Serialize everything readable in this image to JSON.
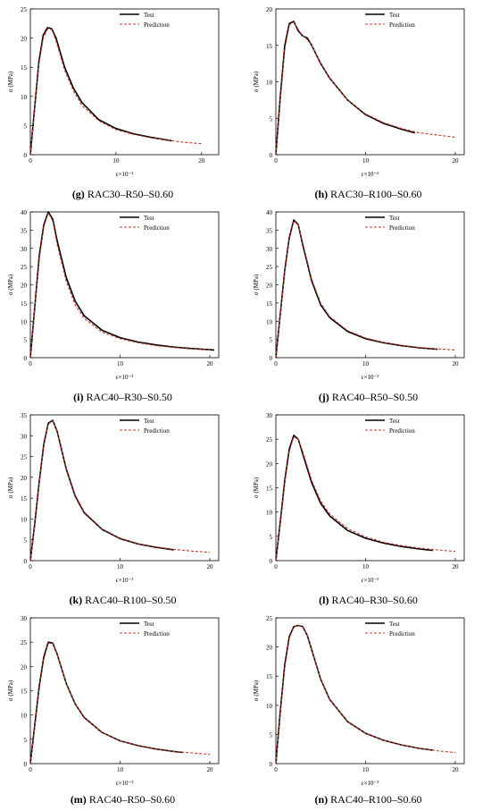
{
  "legend": {
    "test": "Test",
    "prediction": "Prediction"
  },
  "axes": {
    "xlabel": "ε×10⁻³",
    "ylabel": "σ (MPa)"
  },
  "colors": {
    "test": "#000000",
    "prediction": "#c0392b"
  },
  "chart_data": [
    {
      "type": "line",
      "letter": "(g)",
      "specimen": "RAC30–R50–S0.60",
      "xlabel": "ε×10⁻³",
      "ylabel": "σ (MPa)",
      "xlim": [
        0,
        22
      ],
      "ylim": [
        0,
        25
      ],
      "xticks": [
        0,
        10,
        20
      ],
      "yticks": [
        0,
        5,
        10,
        15,
        20,
        25
      ],
      "legend_position": "top-right",
      "series": [
        {
          "name": "Test",
          "style": "solid",
          "x": [
            0,
            0.5,
            1,
            1.5,
            2,
            2.5,
            3,
            4,
            5,
            6,
            8,
            10,
            12,
            14,
            16.5
          ],
          "y": [
            0,
            8,
            16,
            20.5,
            21.8,
            21.6,
            20,
            15,
            11.5,
            9,
            6,
            4.5,
            3.6,
            3,
            2.4
          ]
        },
        {
          "name": "Prediction",
          "style": "dashed",
          "x": [
            0,
            0.5,
            1,
            1.5,
            2,
            2.5,
            3,
            4,
            5,
            6,
            8,
            10,
            12,
            14,
            16,
            18,
            20
          ],
          "y": [
            0,
            7.5,
            15.5,
            20,
            21.5,
            21.5,
            19.5,
            14.5,
            11,
            8.5,
            5.8,
            4.3,
            3.5,
            2.9,
            2.5,
            2.1,
            1.9
          ]
        }
      ]
    },
    {
      "type": "line",
      "letter": "(h)",
      "specimen": "RAC30–R100–S0.60",
      "xlabel": "ε×10⁻³",
      "ylabel": "σ (MPa)",
      "xlim": [
        0,
        21
      ],
      "ylim": [
        0,
        20
      ],
      "xticks": [
        0,
        10,
        20
      ],
      "yticks": [
        0,
        5,
        10,
        15,
        20
      ],
      "legend_position": "top-right",
      "series": [
        {
          "name": "Test",
          "style": "solid",
          "x": [
            0,
            0.5,
            1,
            1.5,
            2,
            2.5,
            3,
            3.5,
            4,
            5,
            6,
            8,
            10,
            12,
            14,
            15.5
          ],
          "y": [
            0,
            8,
            15,
            18,
            18.3,
            17,
            16.3,
            16,
            15,
            12.5,
            10.5,
            7.5,
            5.5,
            4.3,
            3.5,
            3
          ]
        },
        {
          "name": "Prediction",
          "style": "dashed",
          "x": [
            0,
            0.5,
            1,
            1.5,
            2,
            2.5,
            3,
            3.5,
            4,
            5,
            6,
            8,
            10,
            12,
            14,
            16,
            18,
            20
          ],
          "y": [
            0,
            7.5,
            14.5,
            17.8,
            18.2,
            17.2,
            16.3,
            15.8,
            15,
            12.5,
            10.5,
            7.5,
            5.6,
            4.4,
            3.6,
            3,
            2.7,
            2.4
          ]
        }
      ]
    },
    {
      "type": "line",
      "letter": "(i)",
      "specimen": "RAC40–R30–S0.50",
      "xlabel": "ε×10⁻³",
      "ylabel": "σ (MPa)",
      "xlim": [
        0,
        21
      ],
      "ylim": [
        0,
        40
      ],
      "xticks": [
        0,
        10,
        20
      ],
      "yticks": [
        0,
        5,
        10,
        15,
        20,
        25,
        30,
        35,
        40
      ],
      "legend_position": "top-right",
      "series": [
        {
          "name": "Test",
          "style": "solid",
          "x": [
            0,
            0.5,
            1,
            1.5,
            2,
            2.5,
            3,
            4,
            5,
            6,
            8,
            10,
            12,
            14,
            16,
            18,
            20.5
          ],
          "y": [
            0,
            14,
            28,
            36.5,
            40,
            38,
            32,
            22,
            15.5,
            11.5,
            7.5,
            5.5,
            4.3,
            3.5,
            2.9,
            2.5,
            2.1
          ]
        },
        {
          "name": "Prediction",
          "style": "dashed",
          "x": [
            0,
            0.5,
            1,
            1.5,
            2,
            2.5,
            3,
            4,
            5,
            6,
            8,
            10,
            12,
            14,
            16,
            18,
            20
          ],
          "y": [
            0,
            13.5,
            27,
            36,
            39.7,
            37.5,
            31,
            21,
            14.5,
            10.8,
            7,
            5.2,
            4.1,
            3.3,
            2.8,
            2.4,
            2.1
          ]
        }
      ]
    },
    {
      "type": "line",
      "letter": "(j)",
      "specimen": "RAC40–R50–S0.50",
      "xlabel": "ε×10⁻³",
      "ylabel": "σ (MPa)",
      "xlim": [
        0,
        21
      ],
      "ylim": [
        0,
        40
      ],
      "xticks": [
        0,
        10,
        20
      ],
      "yticks": [
        0,
        5,
        10,
        15,
        20,
        25,
        30,
        35,
        40
      ],
      "legend_position": "top-right",
      "series": [
        {
          "name": "Test",
          "style": "solid",
          "x": [
            0,
            0.5,
            1,
            1.5,
            2,
            2.5,
            3,
            4,
            5,
            6,
            8,
            10,
            12,
            14,
            16,
            18
          ],
          "y": [
            0,
            12,
            24,
            33,
            37.8,
            36.5,
            31,
            21,
            14.5,
            11,
            7.2,
            5.2,
            4.1,
            3.3,
            2.7,
            2.3
          ]
        },
        {
          "name": "Prediction",
          "style": "dashed",
          "x": [
            0,
            0.5,
            1,
            1.5,
            2,
            2.5,
            3,
            4,
            5,
            6,
            8,
            10,
            12,
            14,
            16,
            18,
            20
          ],
          "y": [
            0,
            11.5,
            23.5,
            32.5,
            37.5,
            36.5,
            31.5,
            21.5,
            15,
            11.3,
            7.4,
            5.4,
            4.2,
            3.4,
            2.8,
            2.4,
            2.1
          ]
        }
      ]
    },
    {
      "type": "line",
      "letter": "(k)",
      "specimen": "RAC40–R100–S0.50",
      "xlabel": "ε×10⁻³",
      "ylabel": "σ (MPa)",
      "xlim": [
        0,
        21
      ],
      "ylim": [
        0,
        35
      ],
      "xticks": [
        0,
        10,
        20
      ],
      "yticks": [
        0,
        5,
        10,
        15,
        20,
        25,
        30,
        35
      ],
      "legend_position": "top-right",
      "series": [
        {
          "name": "Test",
          "style": "solid",
          "x": [
            0,
            0.5,
            1,
            1.5,
            2,
            2.5,
            3,
            4,
            5,
            6,
            8,
            10,
            12,
            14,
            16
          ],
          "y": [
            0,
            9,
            19,
            28,
            33,
            33.7,
            31,
            22,
            15.5,
            11.5,
            7.5,
            5.3,
            4,
            3.2,
            2.6
          ]
        },
        {
          "name": "Prediction",
          "style": "dashed",
          "x": [
            0,
            0.5,
            1,
            1.5,
            2,
            2.5,
            3,
            4,
            5,
            6,
            8,
            10,
            12,
            14,
            16,
            18,
            20
          ],
          "y": [
            0,
            8.5,
            18.5,
            27.5,
            32.8,
            33.6,
            31.2,
            22.3,
            15.8,
            11.7,
            7.6,
            5.4,
            4.1,
            3.3,
            2.7,
            2.3,
            2
          ]
        }
      ]
    },
    {
      "type": "line",
      "letter": "(l)",
      "specimen": "RAC40–R30–S0.60",
      "xlabel": "ε×10⁻³",
      "ylabel": "σ (MPa)",
      "xlim": [
        0,
        21
      ],
      "ylim": [
        0,
        30
      ],
      "xticks": [
        0,
        10,
        20
      ],
      "yticks": [
        0,
        5,
        10,
        15,
        20,
        25,
        30
      ],
      "legend_position": "top-right",
      "series": [
        {
          "name": "Test",
          "style": "solid",
          "x": [
            0,
            0.5,
            1,
            1.5,
            2,
            2.5,
            3,
            4,
            5,
            6,
            8,
            10,
            12,
            14,
            16,
            17.5
          ],
          "y": [
            0,
            8,
            16.5,
            23,
            25.8,
            25,
            22,
            16,
            11.8,
            9.2,
            6.2,
            4.6,
            3.6,
            2.9,
            2.4,
            2.1
          ]
        },
        {
          "name": "Prediction",
          "style": "dashed",
          "x": [
            0,
            0.5,
            1,
            1.5,
            2,
            2.5,
            3,
            4,
            5,
            6,
            8,
            10,
            12,
            14,
            16,
            18,
            20
          ],
          "y": [
            0,
            7.5,
            16,
            22.5,
            25.5,
            25,
            22.5,
            16.5,
            12.3,
            9.6,
            6.6,
            4.9,
            3.8,
            3.1,
            2.6,
            2.2,
            1.9
          ]
        }
      ]
    },
    {
      "type": "line",
      "letter": "(m)",
      "specimen": "RAC40–R50–S0.60",
      "xlabel": "ε×10⁻³",
      "ylabel": "σ (MPa)",
      "xlim": [
        0,
        21
      ],
      "ylim": [
        0,
        30
      ],
      "xticks": [
        0,
        10,
        20
      ],
      "yticks": [
        0,
        5,
        10,
        15,
        20,
        25,
        30
      ],
      "legend_position": "top-right",
      "series": [
        {
          "name": "Test",
          "style": "solid",
          "x": [
            0,
            0.5,
            1,
            1.5,
            2,
            2.5,
            3,
            4,
            5,
            6,
            8,
            10,
            12,
            14,
            16,
            17
          ],
          "y": [
            0,
            8,
            16,
            22,
            25,
            24.8,
            22.5,
            16.5,
            12.3,
            9.5,
            6.4,
            4.7,
            3.7,
            3,
            2.5,
            2.3
          ]
        },
        {
          "name": "Prediction",
          "style": "dashed",
          "x": [
            0,
            0.5,
            1,
            1.5,
            2,
            2.5,
            3,
            4,
            5,
            6,
            8,
            10,
            12,
            14,
            16,
            18,
            20
          ],
          "y": [
            0,
            7.5,
            15.5,
            21.5,
            24.8,
            24.7,
            22.5,
            16.5,
            12.3,
            9.5,
            6.4,
            4.7,
            3.7,
            3,
            2.5,
            2.2,
            1.9
          ]
        }
      ]
    },
    {
      "type": "line",
      "letter": "(n)",
      "specimen": "RAC40–R100–S0.60",
      "xlabel": "ε×10⁻³",
      "ylabel": "σ (MPa)",
      "xlim": [
        0,
        21
      ],
      "ylim": [
        0,
        25
      ],
      "xticks": [
        0,
        10,
        20
      ],
      "yticks": [
        0,
        5,
        10,
        15,
        20,
        25
      ],
      "legend_position": "top-right",
      "series": [
        {
          "name": "Test",
          "style": "solid",
          "x": [
            0,
            0.5,
            1,
            1.5,
            2,
            2.5,
            3,
            3.5,
            4,
            5,
            6,
            8,
            10,
            12,
            14,
            16,
            17.5
          ],
          "y": [
            0,
            9,
            17,
            21.8,
            23.5,
            23.7,
            23.5,
            22,
            19.5,
            14.5,
            11,
            7.2,
            5.2,
            4,
            3.2,
            2.6,
            2.3
          ]
        },
        {
          "name": "Prediction",
          "style": "dashed",
          "x": [
            0,
            0.5,
            1,
            1.5,
            2,
            2.5,
            3,
            3.5,
            4,
            5,
            6,
            8,
            10,
            12,
            14,
            16,
            18,
            20
          ],
          "y": [
            0,
            8.5,
            16.5,
            21.5,
            23.4,
            23.7,
            23.5,
            22,
            19.5,
            14.5,
            11,
            7.2,
            5.2,
            4,
            3.2,
            2.6,
            2.2,
            1.9
          ]
        }
      ]
    }
  ]
}
